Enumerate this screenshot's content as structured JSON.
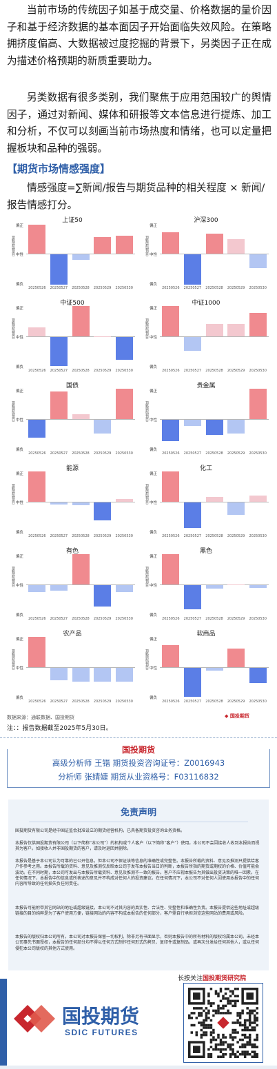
{
  "article": {
    "p1": "当前市场的传统因子如基于成交量、价格数据的量价因子和基于经济数据的基本面因子开始面临失效风险。在策略拥挤度偏高、大数据被过度挖掘的背景下，另类因子正在成为描述价格预期的新质重要助力。",
    "p2": "另类数据有很多类别，我们聚焦于应用范围较广的舆情因子，通过对新闻、媒体和研报等文本信息进行提炼、加工和分析，不仅可以刻画当前市场热度和情绪，也可以定量把握板块和品种的强弱。",
    "section": "【期货市场情感强度】",
    "formula": "情感强度=∑新闻/报告与期货品种的相关程度 × 新闻/报告情感打分。"
  },
  "charts_common": {
    "y_top": "偏正",
    "y_mid": "中性",
    "y_bottom": "偏负",
    "y_name": "日度情感强度",
    "dates": [
      "20250526",
      "20250527",
      "20250528",
      "20250529",
      "20250530"
    ]
  },
  "chart_data": [
    {
      "type": "bar",
      "title": "上证50",
      "categories": [
        "20250526",
        "20250527",
        "20250528",
        "20250529",
        "20250530"
      ],
      "values": [
        0.95,
        -1.0,
        -0.18,
        0.55,
        0.6
      ],
      "ylim": [
        -1,
        1
      ]
    },
    {
      "type": "bar",
      "title": "沪深300",
      "categories": [
        "20250526",
        "20250527",
        "20250528",
        "20250529",
        "20250530"
      ],
      "values": [
        0.7,
        -1.0,
        0.65,
        0.48,
        -0.45
      ],
      "ylim": [
        -1,
        1
      ]
    },
    {
      "type": "bar",
      "title": "中证500",
      "categories": [
        "20250526",
        "20250527",
        "20250528",
        "20250529",
        "20250530"
      ],
      "values": [
        0.3,
        -0.95,
        1.0,
        0.0,
        -0.75
      ],
      "ylim": [
        -1,
        1
      ]
    },
    {
      "type": "bar",
      "title": "中证1000",
      "categories": [
        "20250526",
        "20250527",
        "20250528",
        "20250529",
        "20250530"
      ],
      "values": [
        1.0,
        -0.45,
        0.42,
        0.42,
        0.78
      ],
      "ylim": [
        -1,
        1
      ]
    },
    {
      "type": "bar",
      "title": "国债",
      "categories": [
        "20250526",
        "20250527",
        "20250528",
        "20250529",
        "20250530"
      ],
      "values": [
        -0.6,
        0.92,
        0.15,
        -0.45,
        1.0
      ],
      "ylim": [
        -1,
        1
      ]
    },
    {
      "type": "bar",
      "title": "贵金属",
      "categories": [
        "20250526",
        "20250527",
        "20250528",
        "20250529",
        "20250530"
      ],
      "values": [
        -0.7,
        -0.2,
        -0.5,
        -0.45,
        1.0
      ],
      "ylim": [
        -1,
        1
      ]
    },
    {
      "type": "bar",
      "title": "能源",
      "categories": [
        "20250526",
        "20250527",
        "20250528",
        "20250529",
        "20250530"
      ],
      "values": [
        1.0,
        -0.06,
        -0.1,
        -0.58,
        0.08
      ],
      "ylim": [
        -1,
        1
      ]
    },
    {
      "type": "bar",
      "title": "化工",
      "categories": [
        "20250526",
        "20250527",
        "20250528",
        "20250529",
        "20250530"
      ],
      "values": [
        1.0,
        -0.85,
        0.15,
        -0.4,
        0.2
      ],
      "ylim": [
        -1,
        1
      ]
    },
    {
      "type": "bar",
      "title": "有色",
      "categories": [
        "20250526",
        "20250527",
        "20250528",
        "20250529",
        "20250530"
      ],
      "values": [
        -0.22,
        -0.18,
        1.0,
        -0.7,
        -0.22
      ],
      "ylim": [
        -1,
        1
      ]
    },
    {
      "type": "bar",
      "title": "黑色",
      "categories": [
        "20250526",
        "20250527",
        "20250528",
        "20250529",
        "20250530"
      ],
      "values": [
        1.0,
        -0.8,
        -0.12,
        0.0,
        -0.08
      ],
      "ylim": [
        -1,
        1
      ]
    },
    {
      "type": "bar",
      "title": "农产品",
      "categories": [
        "20250526",
        "20250527",
        "20250528",
        "20250529",
        "20250530"
      ],
      "values": [
        1.0,
        -0.42,
        -0.45,
        -0.45,
        -0.45
      ],
      "ylim": [
        -1,
        1
      ]
    },
    {
      "type": "bar",
      "title": "软商品",
      "categories": [
        "20250526",
        "20250527",
        "20250528",
        "20250529",
        "20250530"
      ],
      "values": [
        0.72,
        -0.95,
        -0.1,
        0.62,
        -0.5
      ],
      "ylim": [
        -1,
        1
      ]
    }
  ],
  "footer": {
    "source": "数据来源：通联数据、国投期货",
    "source_logo": "◆ 国投期货",
    "note": "注：：报告数据截至2025年5月30日。",
    "brand": "国投期货",
    "analyst1": "高级分析师  王锴  期货投资咨询证号：Z0016943",
    "analyst2": "分析师  张婧婕  期货从业资格号：F03116832"
  },
  "disclaimer": {
    "title": "免责声明",
    "p1": "国投期货有限公司是经中国证监会批准设立的期货经营机构，已具备期货投资咨询业务资格。",
    "p2": "本报告仅供国投期货有限公司（以下简称“本公司”）的机构或个人客户（以下简称“客户”）使用。本公司不会因接收人收到本报告而视其为客户。如接收人并非国投期货的客户，请及时退回并删除。",
    "p3": "本报告是基于本公司认为可靠的已公开信息，但本公司不保证该等信息的准确性或完整性。本报告所载的资料、意见及推测只提供给客户作参考之用。本报告所载的资料、意见及推测仅反映本公司于发布本报告当日的判断，本报告所指的期货或期权的价格、价值可能会波动。在不同时期，本公司可发出与本报告所载资料、意见及推测不一致的报告。客户不应视本报告为其做出投资决策的唯一因素。在任何情况下，本报告中的信息或所表述的意见并不构成对任何人的投资建议。在任何情况下，本公司不对任何人因使用本报告中的任何内容所导致的任何损失负任何责任。",
    "p4": "本报告可能附带其它网站的地址或超级链接，本公司不对其内容的真实性、合法性、完整性和准确性负责。本报告提供这些地址或超级链接的目的纯粹是为了客户使用方便，链接网站的内容不构成本报告的任何部分，客户需自行承担浏览这些网站的费用或风险。",
    "p5": "本报告的版权归本公司所有。本公司对本报告保留一切权利。除非另有书面显示，否则本报告中的所有材料的版权均属本公司。未经本公司事先书面授权，本报告的任何部分均不得以任何方式制作任何形式的拷贝、复印件或复制品，或再次分发给任何其他人，或以任何侵犯本公司版权的其他方式使用。"
  },
  "follow": {
    "prefix": "长按关注",
    "name": "国投期货研究院"
  },
  "logo": {
    "cn": "国投期货",
    "en": "SDIC FUTURES"
  },
  "colors": {
    "pos_strong": "#f08a8f",
    "pos_light": "#f3c8cf",
    "neg_strong": "#5b7ee6",
    "neg_light": "#b3c6f3",
    "brand_red": "#c8272e",
    "brand_blue": "#2f5fa8"
  }
}
